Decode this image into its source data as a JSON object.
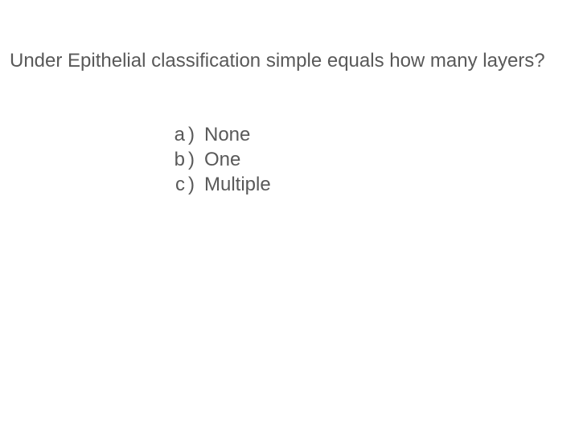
{
  "slide": {
    "background_color": "#ffffff",
    "text_color": "#595959",
    "font_family": "Arial",
    "question_fontsize": 24,
    "option_fontsize": 24,
    "question": "Under Epithelial classification simple equals how many layers?",
    "options": [
      {
        "letter": "a",
        "text": "None"
      },
      {
        "letter": "b",
        "text": "One"
      },
      {
        "letter": "c",
        "text": "Multiple"
      }
    ]
  }
}
